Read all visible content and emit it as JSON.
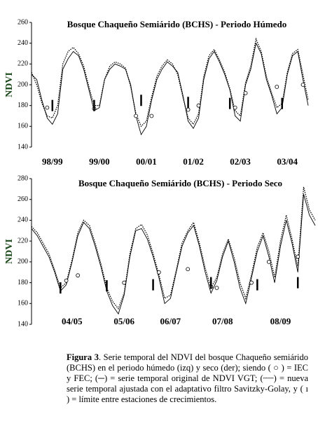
{
  "chart_data": [
    {
      "type": "line",
      "title": "Bosque Chaqueño Semiárido (BCHS) - Periodo Húmedo",
      "y_label": "NDVI",
      "ylim": [
        140,
        260
      ],
      "yticks": [
        140,
        160,
        180,
        200,
        220,
        240,
        260
      ],
      "categories": [
        null,
        null,
        null,
        null,
        "98/99",
        null,
        null,
        null,
        null,
        null,
        null,
        null,
        null,
        "99/00",
        null,
        null,
        null,
        null,
        null,
        null,
        null,
        null,
        "00/01",
        null,
        null,
        null,
        null,
        null,
        null,
        null,
        null,
        "01/02",
        null,
        null,
        null,
        null,
        null,
        null,
        null,
        null,
        "02/03",
        null,
        null,
        null,
        null,
        null,
        null,
        null,
        null,
        "03/04",
        null,
        null,
        null,
        null
      ],
      "series": [
        {
          "style": "solid",
          "color": "#000000",
          "values": [
            210,
            205,
            185,
            168,
            162,
            172,
            215,
            225,
            232,
            228,
            215,
            195,
            175,
            178,
            205,
            215,
            220,
            218,
            215,
            200,
            170,
            152,
            160,
            185,
            205,
            215,
            222,
            218,
            212,
            190,
            165,
            158,
            168,
            205,
            225,
            232,
            222,
            210,
            195,
            170,
            165,
            200,
            215,
            240,
            230,
            205,
            190,
            172,
            178,
            210,
            228,
            232,
            205,
            180
          ]
        },
        {
          "style": "dotted",
          "color": "#000000",
          "values": [
            212,
            200,
            182,
            170,
            168,
            180,
            220,
            232,
            236,
            230,
            218,
            198,
            180,
            180,
            205,
            218,
            222,
            220,
            216,
            198,
            172,
            160,
            165,
            188,
            208,
            218,
            224,
            220,
            210,
            188,
            168,
            162,
            172,
            208,
            228,
            234,
            224,
            212,
            196,
            175,
            170,
            202,
            218,
            244,
            232,
            208,
            192,
            178,
            182,
            212,
            230,
            234,
            210,
            185
          ]
        },
        {
          "style": "circles",
          "color": "#000000",
          "values": [
            null,
            null,
            null,
            178,
            null,
            null,
            null,
            null,
            null,
            null,
            null,
            null,
            177,
            null,
            null,
            null,
            null,
            null,
            null,
            null,
            170,
            null,
            null,
            170,
            null,
            null,
            null,
            null,
            null,
            null,
            176,
            null,
            180,
            null,
            null,
            null,
            null,
            null,
            null,
            178,
            null,
            192,
            null,
            null,
            null,
            null,
            null,
            198,
            null,
            null,
            null,
            null,
            200,
            null
          ]
        },
        {
          "style": "ticks",
          "color": "#000000",
          "values": [
            null,
            null,
            null,
            null,
            180,
            null,
            null,
            null,
            null,
            null,
            null,
            null,
            180,
            null,
            null,
            null,
            null,
            null,
            null,
            null,
            null,
            185,
            null,
            null,
            null,
            null,
            null,
            null,
            null,
            null,
            183,
            null,
            null,
            null,
            null,
            null,
            null,
            null,
            182,
            null,
            null,
            null,
            null,
            null,
            null,
            null,
            null,
            null,
            182,
            null,
            null,
            null,
            null,
            null
          ]
        }
      ]
    },
    {
      "type": "line",
      "title": "Bosque Chaqueño Semiárido (BCHS) - Periodo Seco",
      "y_label": "NDVI",
      "ylim": [
        140,
        280
      ],
      "yticks": [
        140,
        160,
        180,
        200,
        220,
        240,
        260,
        280
      ],
      "categories": [
        null,
        null,
        null,
        null,
        null,
        null,
        null,
        "04/05",
        null,
        null,
        null,
        null,
        null,
        null,
        null,
        null,
        "05/06",
        null,
        null,
        null,
        null,
        null,
        null,
        null,
        "06/07",
        null,
        null,
        null,
        null,
        null,
        null,
        null,
        null,
        "07/08",
        null,
        null,
        null,
        null,
        null,
        null,
        null,
        null,
        null,
        "08/09",
        null,
        null,
        null,
        null,
        null,
        null
      ],
      "series": [
        {
          "style": "solid",
          "color": "#000000",
          "values": [
            232,
            225,
            215,
            205,
            190,
            172,
            178,
            200,
            225,
            238,
            232,
            215,
            195,
            172,
            158,
            150,
            168,
            205,
            230,
            232,
            222,
            205,
            185,
            160,
            165,
            190,
            215,
            228,
            235,
            215,
            190,
            170,
            182,
            205,
            220,
            200,
            175,
            160,
            185,
            210,
            225,
            205,
            180,
            215,
            240,
            218,
            190,
            265,
            245,
            235
          ]
        },
        {
          "style": "dotted",
          "color": "#000000",
          "values": [
            234,
            228,
            218,
            208,
            192,
            175,
            180,
            202,
            228,
            240,
            235,
            218,
            198,
            175,
            162,
            155,
            170,
            208,
            232,
            236,
            226,
            208,
            188,
            165,
            168,
            192,
            218,
            230,
            238,
            218,
            194,
            175,
            185,
            208,
            222,
            204,
            180,
            165,
            188,
            214,
            228,
            210,
            185,
            220,
            245,
            222,
            195,
            272,
            250,
            240
          ]
        },
        {
          "style": "circles",
          "color": "#000000",
          "values": [
            null,
            null,
            null,
            null,
            null,
            null,
            182,
            null,
            187,
            null,
            null,
            null,
            null,
            null,
            null,
            null,
            180,
            null,
            null,
            null,
            null,
            null,
            190,
            null,
            null,
            null,
            null,
            193,
            null,
            null,
            null,
            176,
            175,
            null,
            null,
            null,
            null,
            null,
            180,
            null,
            null,
            200,
            null,
            null,
            null,
            null,
            205,
            null,
            null,
            null
          ]
        },
        {
          "style": "ticks",
          "color": "#000000",
          "values": [
            null,
            null,
            null,
            null,
            null,
            175,
            null,
            null,
            null,
            null,
            null,
            null,
            null,
            177,
            null,
            null,
            null,
            null,
            null,
            null,
            null,
            178,
            null,
            null,
            null,
            null,
            null,
            null,
            null,
            null,
            null,
            180,
            null,
            null,
            null,
            null,
            null,
            null,
            null,
            178,
            null,
            null,
            null,
            null,
            null,
            null,
            180,
            null,
            null,
            null
          ]
        }
      ]
    }
  ],
  "caption": {
    "label": "Figura 3",
    "text": ". Serie temporal del NDVI del bosque Chaqueño semiárido (BCHS) en el periodo húmedo (izq) y seco (der); siendo ( ○ ) = IEC y FEC; (─) = serie temporal original de NDVI VGT; (┈┈) = nueva serie temporal ajustada con el adaptativo filtro Savitzky-Golay, y ( ı ) = límite entre estaciones de crecimientos."
  }
}
